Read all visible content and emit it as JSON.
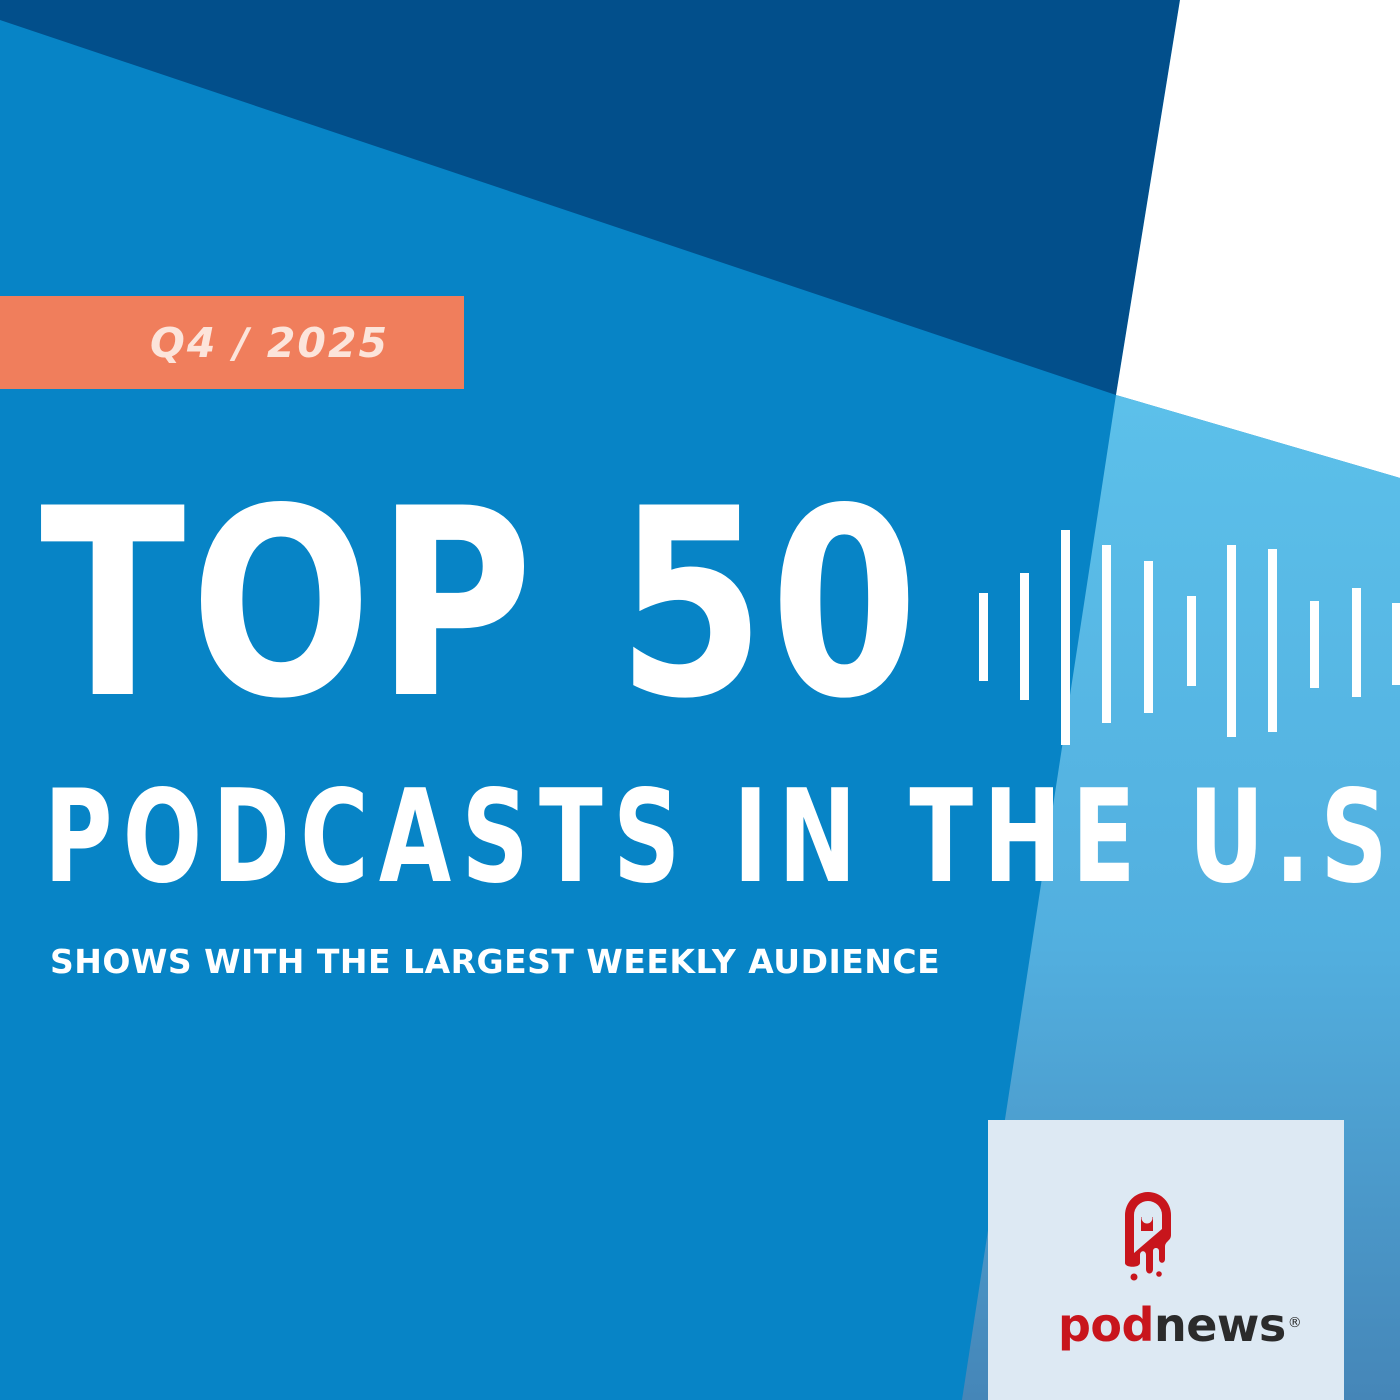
{
  "badge": {
    "text": "Q4 / 2025"
  },
  "headline": {
    "line1": "TOP 50",
    "line2": "PODCASTS IN THE U.S.",
    "tagline": "SHOWS WITH THE LARGEST WEEKLY AUDIENCE"
  },
  "logo": {
    "part1": "pod",
    "part2": "news",
    "registered": "®"
  },
  "icons": {
    "waveform": "audio-waveform-icon",
    "logo_mark": "podnews-mic-drip-icon"
  },
  "colors": {
    "background": "#0784c6",
    "dark_band": "#024f8b",
    "light_band": "#57bce8",
    "white_panel": "#ffffff",
    "badge": "#f07e5c",
    "badge_text": "#fce4da",
    "logo_card": "#dde9f3",
    "logo_red": "#c8151c",
    "logo_dark": "#2b2b2b"
  }
}
